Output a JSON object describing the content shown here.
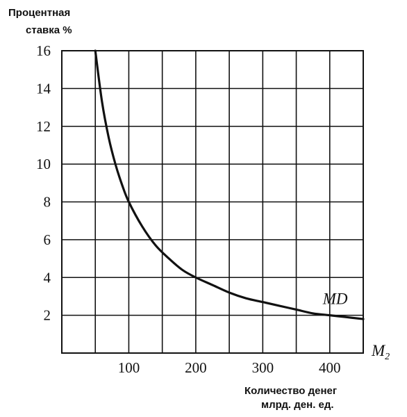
{
  "chart_data": {
    "type": "line",
    "ylabel_lines": [
      "Процентная",
      "ставка %"
    ],
    "xlabel_lines": [
      "Количество денег",
      "млрд. ден. ед."
    ],
    "x_axis_end_label": "M",
    "x_axis_end_sub": "2",
    "xlim": [
      0,
      450
    ],
    "ylim": [
      0,
      16
    ],
    "x_ticks": [
      100,
      200,
      300,
      400
    ],
    "x_tick_labels": [
      "100",
      "200",
      "300",
      "400"
    ],
    "y_ticks": [
      2,
      4,
      6,
      8,
      10,
      12,
      14,
      16
    ],
    "y_tick_labels": [
      "2",
      "4",
      "6",
      "8",
      "10",
      "12",
      "14",
      "16"
    ],
    "grid": true,
    "series": [
      {
        "name": "MD",
        "points": [
          [
            50,
            16
          ],
          [
            60,
            13.3
          ],
          [
            70,
            11.4
          ],
          [
            80,
            10
          ],
          [
            90,
            8.9
          ],
          [
            100,
            8
          ],
          [
            120,
            6.7
          ],
          [
            140,
            5.7
          ],
          [
            160,
            5
          ],
          [
            180,
            4.4
          ],
          [
            200,
            4
          ],
          [
            225,
            3.6
          ],
          [
            250,
            3.2
          ],
          [
            275,
            2.9
          ],
          [
            300,
            2.7
          ],
          [
            325,
            2.5
          ],
          [
            350,
            2.3
          ],
          [
            375,
            2.1
          ],
          [
            400,
            2
          ],
          [
            425,
            1.9
          ],
          [
            450,
            1.8
          ]
        ]
      }
    ]
  }
}
